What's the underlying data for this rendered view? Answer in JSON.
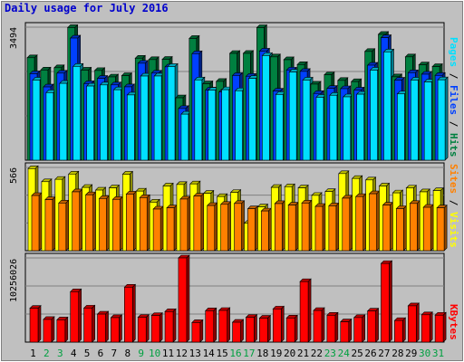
{
  "chart_data": {
    "type": "bar",
    "title": "Daily usage for July 2016",
    "categories": [
      "1",
      "2",
      "3",
      "4",
      "5",
      "6",
      "7",
      "8",
      "9",
      "10",
      "11",
      "12",
      "13",
      "14",
      "15",
      "16",
      "17",
      "18",
      "19",
      "20",
      "21",
      "22",
      "23",
      "24",
      "25",
      "26",
      "27",
      "28",
      "29",
      "30",
      "31"
    ],
    "weekend_days": [
      "2",
      "3",
      "9",
      "10",
      "16",
      "17",
      "23",
      "24",
      "30",
      "31"
    ],
    "panels": [
      {
        "ymax": 3494,
        "tick_label": "3494",
        "right_label": [
          "Hits",
          "Files",
          "Pages"
        ],
        "series": [
          {
            "name": "Hits",
            "color": "#008040",
            "values": [
              2691,
              2369,
              2429,
              3484,
              2366,
              2356,
              2187,
              2220,
              2679,
              2642,
              2649,
              1639,
              3198,
              2008,
              2070,
              2805,
              2806,
              3482,
              2713,
              2639,
              2512,
              1998,
              2243,
              2095,
              2063,
              2856,
              3305,
              2190,
              2714,
              2503,
              2458
            ]
          },
          {
            "name": "Files",
            "color": "#0040ff",
            "values": [
              2271,
              1924,
              2286,
              3208,
              2011,
              2150,
              1978,
              1926,
              2546,
              2287,
              2451,
              1358,
              2797,
              1843,
              1792,
              2225,
              2204,
              2865,
              1815,
              2368,
              2332,
              1752,
              1886,
              1878,
              1843,
              2495,
              3218,
              2103,
              2298,
              2258,
              2227
            ]
          },
          {
            "name": "Pages",
            "color": "#00e0ff",
            "values": [
              2105,
              1775,
              2018,
              2464,
              1948,
              1977,
              1850,
              1714,
              2210,
              2211,
              2461,
              1209,
              2109,
              1838,
              1851,
              1824,
              2149,
              2748,
              1726,
              2316,
              2105,
              1653,
              1705,
              1664,
              1733,
              2366,
              2845,
              1741,
              2105,
              2055,
              2111
            ]
          }
        ]
      },
      {
        "ymax": 566,
        "tick_label": "566",
        "right_label": [
          "Visits",
          "Sites"
        ],
        "series": [
          {
            "name": "Visits",
            "color": "#ffff00",
            "values": [
              558,
              469,
              485,
              521,
              430,
              412,
              427,
              520,
              405,
              330,
              440,
              450,
              454,
              390,
              368,
              396,
              186,
              298,
              430,
              435,
              427,
              376,
              402,
              524,
              491,
              481,
              440,
              393,
              426,
              400,
              408
            ]
          },
          {
            "name": "Sites",
            "color": "#ff8000",
            "values": [
              375,
              347,
              324,
              400,
              380,
              355,
              349,
              385,
              361,
              283,
              291,
              351,
              371,
              307,
              315,
              321,
              285,
              270,
              320,
              310,
              324,
              301,
              305,
              357,
              368,
              387,
              310,
              286,
              321,
              295,
              291
            ]
          }
        ]
      },
      {
        "ymax": 10256026,
        "tick_label": "10256026",
        "right_label": [
          "KBytes"
        ],
        "series": [
          {
            "name": "KBytes",
            "color": "#ff0000",
            "values": [
              4120000,
              2760000,
              2710000,
              6140000,
              4150000,
              3410000,
              2980000,
              6690000,
              3020000,
              3240000,
              3720000,
              10256026,
              2380000,
              3820000,
              3860000,
              2420000,
              3020000,
              2920000,
              4040000,
              2940000,
              7370000,
              3850000,
              3270000,
              2470000,
              2990000,
              3780000,
              9580000,
              2630000,
              4420000,
              3330000,
              3280000
            ]
          }
        ]
      }
    ]
  },
  "colors": {
    "background": "#c0c0c0",
    "panel_bg": "#c0c0c0",
    "gridline": "#808080",
    "title_color": "#0000cc",
    "weekday_label": "#000000",
    "weekend_label": "#00a040"
  }
}
